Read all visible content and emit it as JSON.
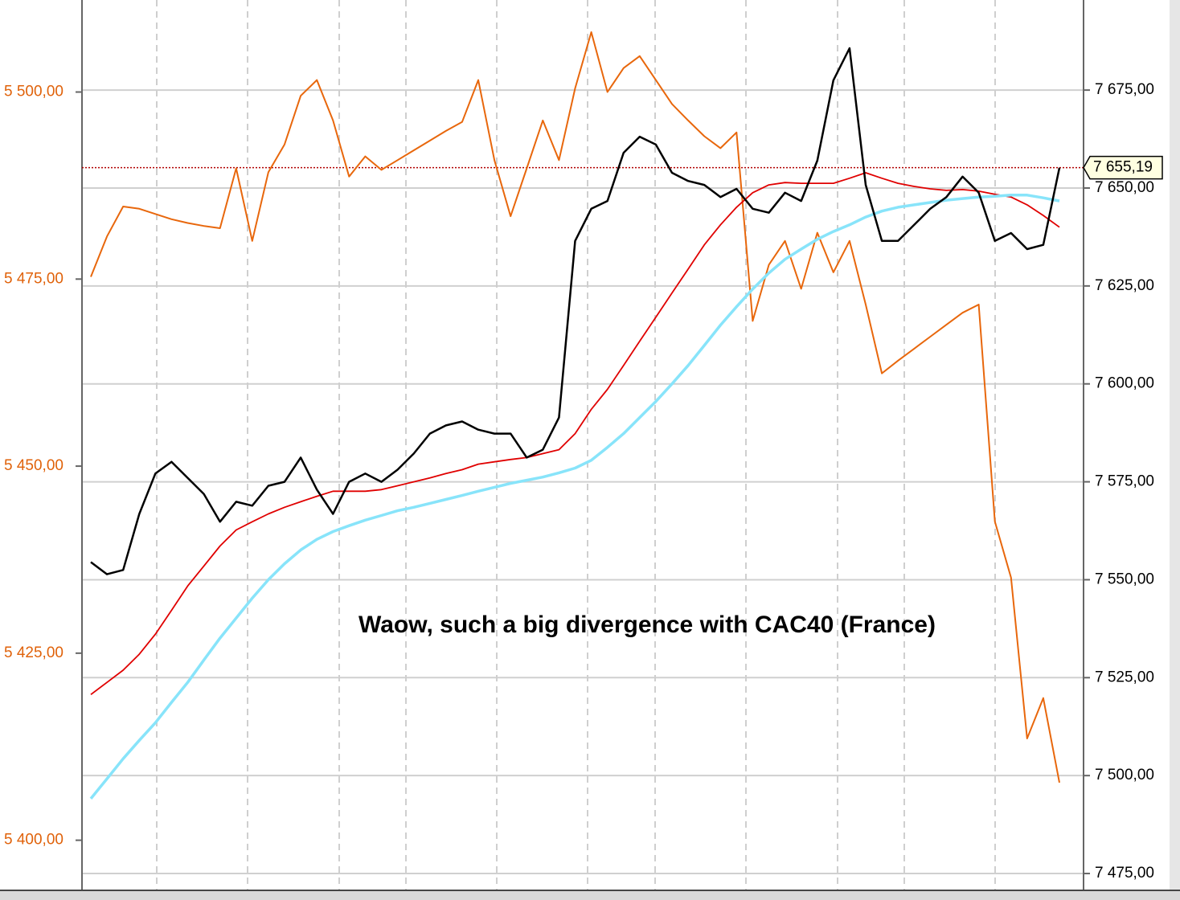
{
  "chart_data": {
    "type": "line",
    "annotation": "Waow, such a big divergence with CAC40 (France)",
    "categories": [
      null,
      null,
      null,
      null,
      null,
      null,
      null,
      null,
      null,
      null,
      null,
      null,
      null,
      null,
      null,
      null,
      null,
      null,
      null,
      null,
      null,
      null,
      null,
      null,
      null,
      null,
      null,
      null,
      null,
      null,
      null,
      null,
      null,
      null,
      null,
      null,
      null,
      null,
      null,
      null,
      null,
      null,
      null,
      null,
      null,
      null,
      null,
      null,
      null,
      null,
      null,
      null,
      null,
      null,
      null,
      null,
      null,
      null,
      null,
      null,
      null
    ],
    "ylim": [
      5393.3,
      5512.3
    ],
    "yticks": [
      {
        "value": 5400,
        "label": "5 400,00"
      },
      {
        "value": 5425,
        "label": "5 425,00"
      },
      {
        "value": 5450,
        "label": "5 450,00"
      },
      {
        "value": 5475,
        "label": "5 475,00"
      },
      {
        "value": 5500,
        "label": "5 500,00"
      }
    ],
    "y2lim": [
      7470.7,
      7698.0
    ],
    "y2ticks": [
      {
        "value": 7475,
        "label": "7 475,00"
      },
      {
        "value": 7500,
        "label": "7 500,00"
      },
      {
        "value": 7525,
        "label": "7 525,00"
      },
      {
        "value": 7550,
        "label": "7 550,00"
      },
      {
        "value": 7575,
        "label": "7 575,00"
      },
      {
        "value": 7600,
        "label": "7 600,00"
      },
      {
        "value": 7625,
        "label": "7 625,00"
      },
      {
        "value": 7650,
        "label": "7 650,00"
      },
      {
        "value": 7675,
        "label": "7 675,00"
      }
    ],
    "grid": true,
    "last_price": {
      "value": 7655.19,
      "label": "7 655,19",
      "color": "#b00000"
    },
    "series": [
      {
        "color": "#e8670c",
        "width": 2,
        "values": [
          5475.3,
          5480.7,
          5484.7,
          5484.4,
          5483.7,
          5483.0,
          5482.5,
          5482.1,
          5481.8,
          5489.8,
          5480.1,
          5489.3,
          5493.0,
          5499.5,
          5501.6,
          5496.2,
          5488.7,
          5491.4,
          5489.6,
          5490.9,
          5492.2,
          5493.5,
          5494.8,
          5496.0,
          5501.6,
          5490.9,
          5483.4,
          5489.8,
          5496.2,
          5490.9,
          5500.5,
          5508.0,
          5500.0,
          5503.2,
          5504.8,
          5501.6,
          5498.4,
          5496.2,
          5494.1,
          5492.5,
          5494.6,
          5469.4,
          5476.9,
          5480.1,
          5473.7,
          5481.2,
          5475.9,
          5480.1,
          5471.6,
          5462.4,
          5464.1,
          5465.7,
          5467.3,
          5468.9,
          5470.5,
          5471.6,
          5442.6,
          5435.1,
          5413.6,
          5419.0,
          5407.7
        ]
      },
      {
        "color": "#e00000",
        "width": 1.8,
        "axis": "y2",
        "values": [
          7520.7,
          7523.8,
          7526.9,
          7531.0,
          7536.1,
          7542.2,
          7548.4,
          7553.5,
          7558.6,
          7562.7,
          7564.8,
          7566.8,
          7568.5,
          7569.9,
          7571.3,
          7572.6,
          7572.6,
          7572.6,
          7573.0,
          7574.0,
          7575.0,
          7576.0,
          7577.1,
          7578.1,
          7579.5,
          7580.1,
          7580.7,
          7581.2,
          7582.2,
          7583.2,
          7587.3,
          7593.5,
          7598.6,
          7604.7,
          7610.9,
          7617.0,
          7623.2,
          7629.3,
          7635.5,
          7640.6,
          7645.1,
          7648.8,
          7650.8,
          7651.4,
          7651.2,
          7651.2,
          7651.2,
          7652.5,
          7653.9,
          7652.5,
          7651.2,
          7650.4,
          7649.8,
          7649.4,
          7649.6,
          7649.2,
          7648.4,
          7647.7,
          7645.7,
          7643.0,
          7640.0
        ]
      },
      {
        "color": "#88e4fa",
        "width": 3.5,
        "axis": "y2",
        "values": [
          7494.1,
          7499.2,
          7504.3,
          7509.0,
          7513.5,
          7518.7,
          7523.8,
          7529.5,
          7535.1,
          7540.2,
          7545.3,
          7550.0,
          7554.1,
          7557.6,
          7560.3,
          7562.3,
          7563.8,
          7565.2,
          7566.4,
          7567.6,
          7568.5,
          7569.5,
          7570.5,
          7571.5,
          7572.6,
          7573.6,
          7574.6,
          7575.4,
          7576.2,
          7577.3,
          7578.5,
          7580.5,
          7583.8,
          7587.3,
          7591.4,
          7595.5,
          7600.0,
          7604.7,
          7609.8,
          7615.0,
          7619.7,
          7624.2,
          7628.3,
          7631.8,
          7634.4,
          7636.9,
          7638.9,
          7640.6,
          7642.6,
          7644.1,
          7645.1,
          7645.7,
          7646.3,
          7646.9,
          7647.3,
          7647.7,
          7647.9,
          7648.2,
          7648.2,
          7647.5,
          7646.7
        ]
      },
      {
        "color": "#000000",
        "width": 2.5,
        "axis": "y2",
        "values": [
          7554.5,
          7551.4,
          7552.5,
          7566.8,
          7577.1,
          7580.1,
          7576.0,
          7571.9,
          7564.8,
          7569.9,
          7568.9,
          7574.0,
          7575.0,
          7581.2,
          7573.0,
          7566.8,
          7575.0,
          7577.1,
          7575.0,
          7578.1,
          7582.2,
          7587.3,
          7589.4,
          7590.4,
          7588.3,
          7587.3,
          7587.3,
          7581.2,
          7583.2,
          7591.4,
          7636.5,
          7644.7,
          7646.7,
          7659.0,
          7663.1,
          7661.1,
          7653.9,
          7651.8,
          7650.8,
          7647.7,
          7649.8,
          7644.7,
          7643.7,
          7648.8,
          7646.7,
          7657.0,
          7677.5,
          7685.7,
          7650.8,
          7636.5,
          7636.5,
          7640.6,
          7644.7,
          7647.7,
          7652.9,
          7648.8,
          7636.5,
          7638.5,
          7634.4,
          7635.5,
          7655.19
        ]
      }
    ]
  }
}
